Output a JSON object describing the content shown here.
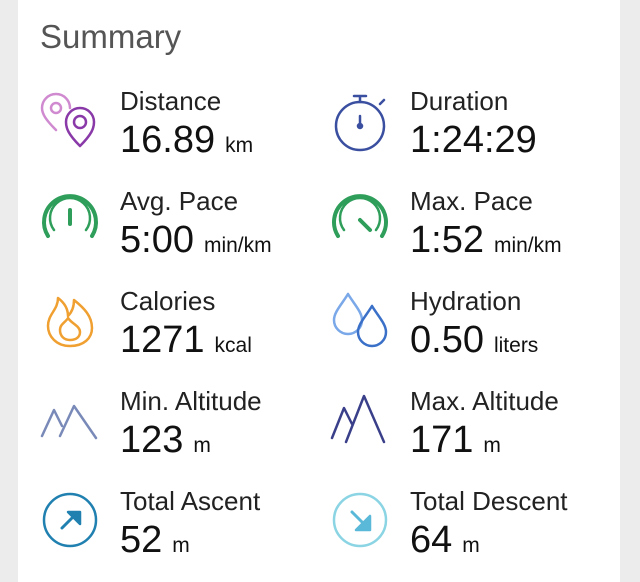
{
  "title": "Summary",
  "stats": [
    {
      "label": "Distance",
      "value": "16.89",
      "unit": "km"
    },
    {
      "label": "Duration",
      "value": "1:24:29"
    },
    {
      "label": "Avg. Pace",
      "value": "5:00",
      "unit": "min/km"
    },
    {
      "label": "Max. Pace",
      "value": "1:52",
      "unit": "min/km"
    },
    {
      "label": "Calories",
      "value": "1271",
      "unit": "kcal"
    },
    {
      "label": "Hydration",
      "value": "0.50",
      "unit": "liters"
    },
    {
      "label": "Min. Altitude",
      "value": "123",
      "unit": "m"
    },
    {
      "label": "Max. Altitude",
      "value": "171",
      "unit": "m"
    },
    {
      "label": "Total Ascent",
      "value": "52",
      "unit": "m"
    },
    {
      "label": "Total Descent",
      "value": "64",
      "unit": "m"
    }
  ]
}
